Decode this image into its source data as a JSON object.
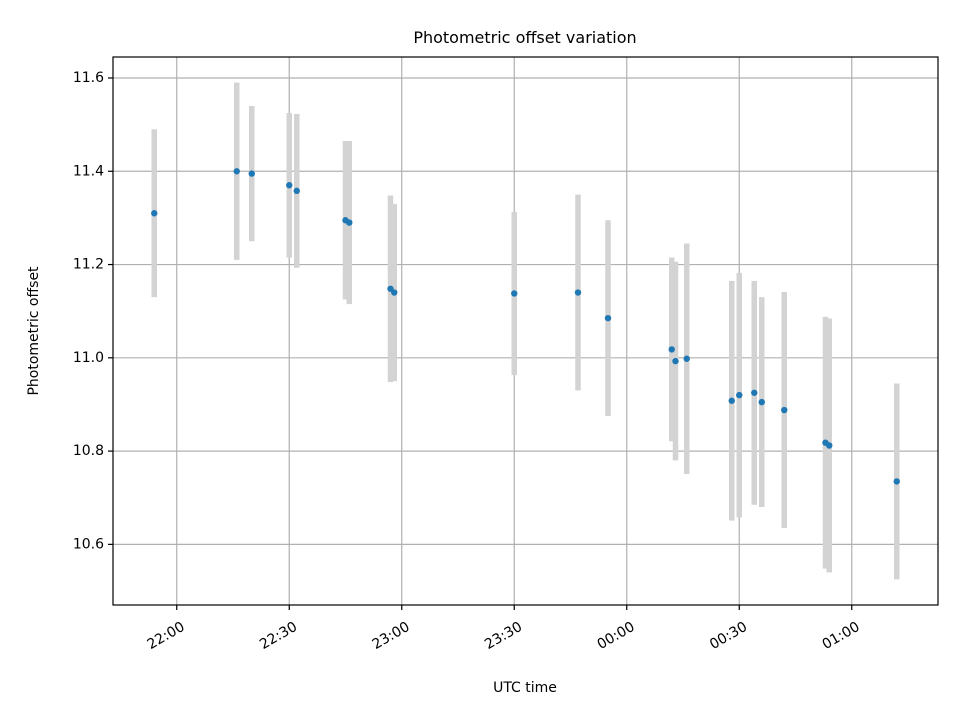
{
  "chart_data": {
    "type": "scatter",
    "title": "Photometric offset variation",
    "xlabel": "UTC time",
    "ylabel": "Photometric offset",
    "xlim": [
      "21:43",
      "01:23"
    ],
    "ylim": [
      10.47,
      11.645
    ],
    "grid": true,
    "x_ticks": [
      "22:00",
      "22:30",
      "23:00",
      "23:30",
      "00:00",
      "00:30",
      "01:00"
    ],
    "y_ticks": [
      10.6,
      10.8,
      11.0,
      11.2,
      11.4,
      11.6
    ],
    "y_tick_labels": [
      "10.6",
      "10.8",
      "11.0",
      "11.2",
      "11.4",
      "11.6"
    ],
    "series": [
      {
        "point_color": "#1f77b4",
        "errorbar_color": "#d3d3d3",
        "points": [
          {
            "x": "21:54",
            "y": 11.31,
            "err": 0.18
          },
          {
            "x": "22:16",
            "y": 11.4,
            "err": 0.19
          },
          {
            "x": "22:20",
            "y": 11.395,
            "err": 0.145
          },
          {
            "x": "22:30",
            "y": 11.37,
            "err": 0.155
          },
          {
            "x": "22:32",
            "y": 11.358,
            "err": 0.165
          },
          {
            "x": "22:45",
            "y": 11.295,
            "err": 0.17
          },
          {
            "x": "22:46",
            "y": 11.29,
            "err": 0.175
          },
          {
            "x": "22:57",
            "y": 11.148,
            "err": 0.2
          },
          {
            "x": "22:58",
            "y": 11.14,
            "err": 0.19
          },
          {
            "x": "23:30",
            "y": 11.138,
            "err": 0.175
          },
          {
            "x": "23:47",
            "y": 11.14,
            "err": 0.21
          },
          {
            "x": "23:55",
            "y": 11.085,
            "err": 0.21
          },
          {
            "x": "00:12",
            "y": 11.018,
            "err": 0.197
          },
          {
            "x": "00:13",
            "y": 10.993,
            "err": 0.213
          },
          {
            "x": "00:16",
            "y": 10.998,
            "err": 0.247
          },
          {
            "x": "00:28",
            "y": 10.908,
            "err": 0.257
          },
          {
            "x": "00:30",
            "y": 10.92,
            "err": 0.262
          },
          {
            "x": "00:34",
            "y": 10.925,
            "err": 0.24
          },
          {
            "x": "00:36",
            "y": 10.905,
            "err": 0.225
          },
          {
            "x": "00:42",
            "y": 10.888,
            "err": 0.253
          },
          {
            "x": "00:53",
            "y": 10.818,
            "err": 0.27
          },
          {
            "x": "00:54",
            "y": 10.812,
            "err": 0.272
          },
          {
            "x": "01:12",
            "y": 10.735,
            "err": 0.21
          }
        ]
      }
    ]
  }
}
